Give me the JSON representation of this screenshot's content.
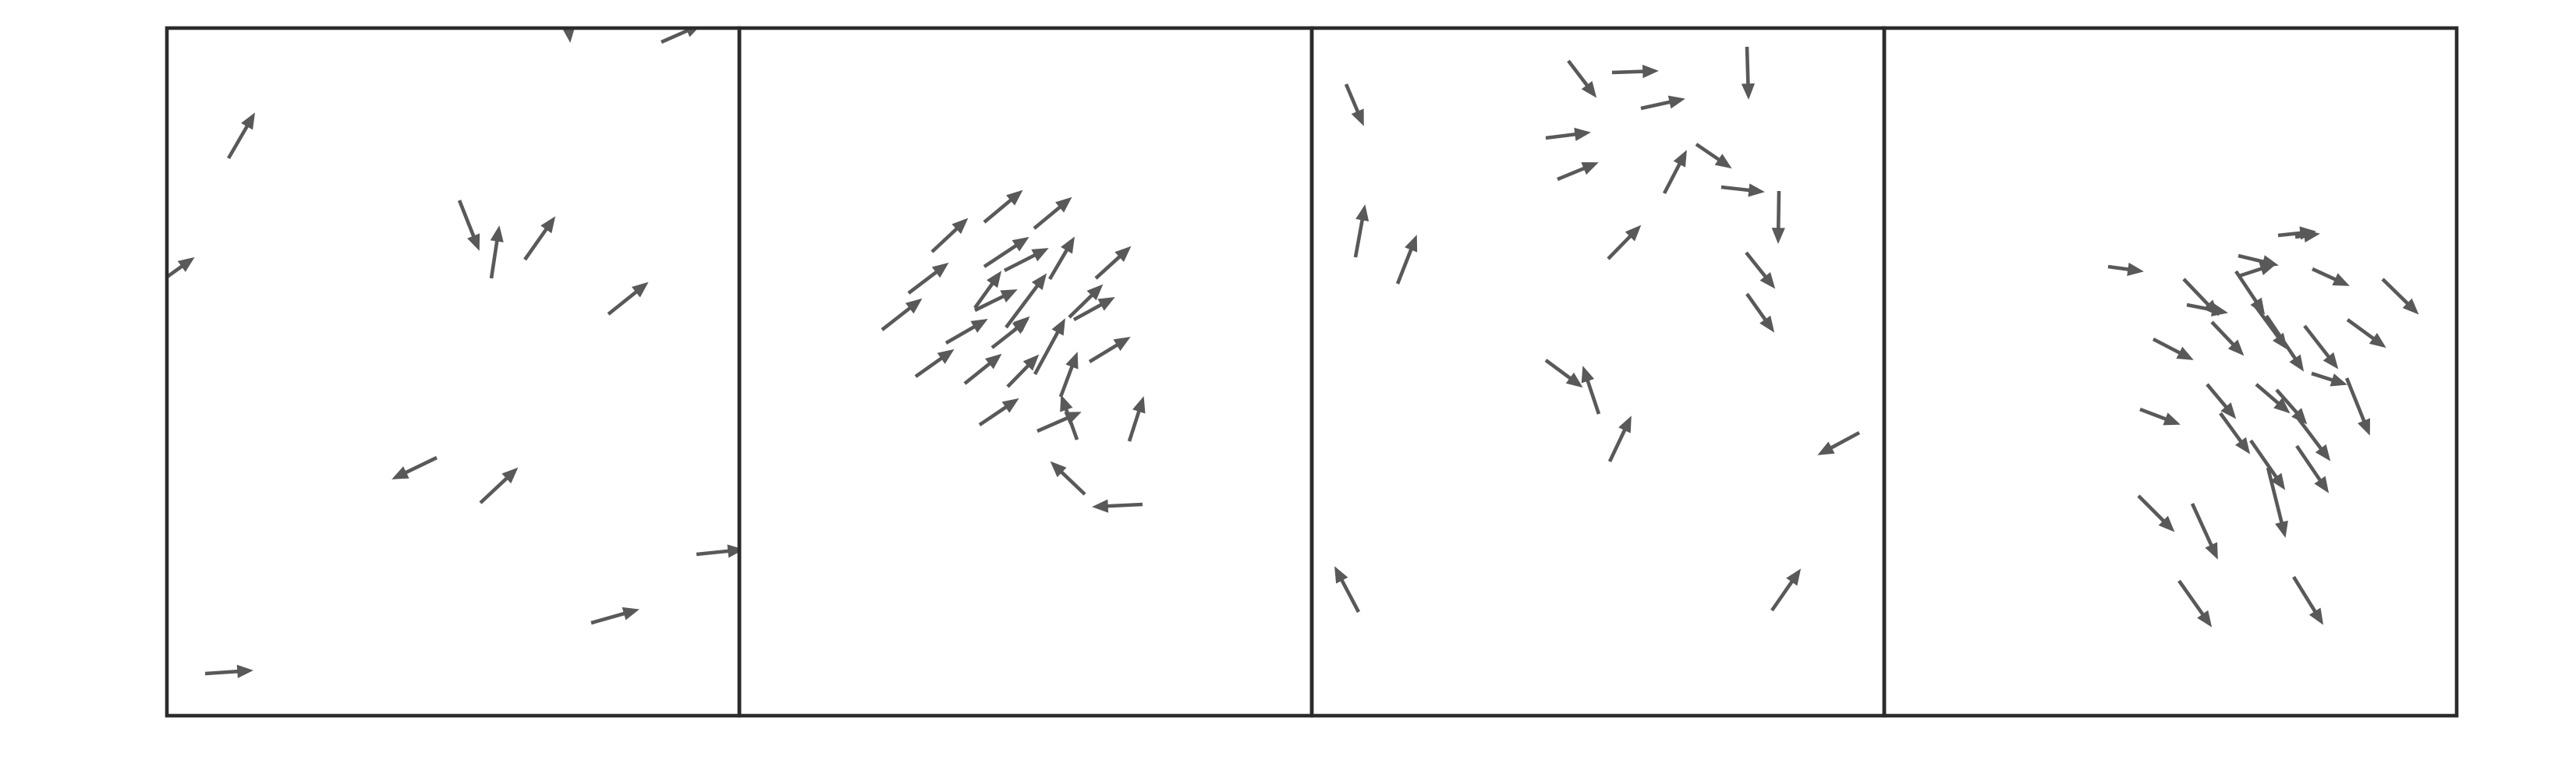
{
  "figure": {
    "panel_count": 4,
    "arrow_color": "#595959",
    "frame_color": "#2b2b2b",
    "background": "#ffffff"
  },
  "panels": [
    {
      "name": "panel-1",
      "description_visible": "",
      "arrows": [
        {
          "from": [
            293,
            203
          ],
          "to": [
            326,
            146
          ]
        },
        {
          "from": [
            729,
            35
          ],
          "to": [
            731,
            53
          ]
        },
        {
          "from": [
            848,
            54
          ],
          "to": [
            898,
            32
          ]
        },
        {
          "from": [
            213,
            356
          ],
          "to": [
            248,
            331
          ]
        },
        {
          "from": [
            589,
            257
          ],
          "to": [
            614,
            320
          ]
        },
        {
          "from": [
            630,
            357
          ],
          "to": [
            640,
            291
          ]
        },
        {
          "from": [
            673,
            333
          ],
          "to": [
            711,
            279
          ]
        },
        {
          "from": [
            780,
            403
          ],
          "to": [
            830,
            363
          ]
        },
        {
          "from": [
            560,
            587
          ],
          "to": [
            504,
            614
          ]
        },
        {
          "from": [
            616,
            645
          ],
          "to": [
            663,
            601
          ]
        },
        {
          "from": [
            893,
            711
          ],
          "to": [
            952,
            705
          ]
        },
        {
          "from": [
            758,
            799
          ],
          "to": [
            818,
            782
          ]
        },
        {
          "from": [
            263,
            864
          ],
          "to": [
            323,
            860
          ]
        }
      ]
    },
    {
      "name": "panel-2",
      "arrows": [
        {
          "from": [
            1195,
            323
          ],
          "to": [
            1240,
            281
          ]
        },
        {
          "from": [
            1262,
            285
          ],
          "to": [
            1310,
            245
          ]
        },
        {
          "from": [
            1326,
            293
          ],
          "to": [
            1373,
            254
          ]
        },
        {
          "from": [
            1165,
            376
          ],
          "to": [
            1215,
            338
          ]
        },
        {
          "from": [
            1262,
            342
          ],
          "to": [
            1318,
            305
          ]
        },
        {
          "from": [
            1288,
            347
          ],
          "to": [
            1343,
            319
          ]
        },
        {
          "from": [
            1346,
            358
          ],
          "to": [
            1377,
            305
          ]
        },
        {
          "from": [
            1405,
            357
          ],
          "to": [
            1449,
            317
          ]
        },
        {
          "from": [
            1131,
            423
          ],
          "to": [
            1181,
            384
          ]
        },
        {
          "from": [
            1250,
            395
          ],
          "to": [
            1283,
            349
          ]
        },
        {
          "from": [
            1250,
            398
          ],
          "to": [
            1303,
            372
          ]
        },
        {
          "from": [
            1290,
            420
          ],
          "to": [
            1341,
            352
          ]
        },
        {
          "from": [
            1371,
            407
          ],
          "to": [
            1413,
            366
          ]
        },
        {
          "from": [
            1377,
            410
          ],
          "to": [
            1428,
            382
          ]
        },
        {
          "from": [
            1213,
            440
          ],
          "to": [
            1265,
            410
          ]
        },
        {
          "from": [
            1272,
            446
          ],
          "to": [
            1318,
            410
          ]
        },
        {
          "from": [
            1300,
            424
          ],
          "to": [
            1319,
            407
          ]
        },
        {
          "from": [
            1397,
            464
          ],
          "to": [
            1448,
            433
          ]
        },
        {
          "from": [
            1174,
            483
          ],
          "to": [
            1222,
            449
          ]
        },
        {
          "from": [
            1237,
            492
          ],
          "to": [
            1283,
            455
          ]
        },
        {
          "from": [
            1292,
            496
          ],
          "to": [
            1331,
            456
          ]
        },
        {
          "from": [
            1327,
            480
          ],
          "to": [
            1365,
            410
          ]
        },
        {
          "from": [
            1360,
            509
          ],
          "to": [
            1381,
            453
          ]
        },
        {
          "from": [
            1256,
            545
          ],
          "to": [
            1305,
            512
          ]
        },
        {
          "from": [
            1330,
            553
          ],
          "to": [
            1385,
            529
          ]
        },
        {
          "from": [
            1381,
            564
          ],
          "to": [
            1361,
            508
          ]
        },
        {
          "from": [
            1448,
            566
          ],
          "to": [
            1466,
            510
          ]
        },
        {
          "from": [
            1391,
            634
          ],
          "to": [
            1348,
            593
          ]
        },
        {
          "from": [
            1465,
            647
          ],
          "to": [
            1402,
            650
          ]
        }
      ]
    },
    {
      "name": "panel-3",
      "arrows": [
        {
          "from": [
            1726,
            108
          ],
          "to": [
            1748,
            160
          ]
        },
        {
          "from": [
            2011,
            78
          ],
          "to": [
            2046,
            124
          ]
        },
        {
          "from": [
            2067,
            93
          ],
          "to": [
            2125,
            91
          ]
        },
        {
          "from": [
            2240,
            60
          ],
          "to": [
            2242,
            126
          ]
        },
        {
          "from": [
            2104,
            139
          ],
          "to": [
            2159,
            127
          ]
        },
        {
          "from": [
            1982,
            177
          ],
          "to": [
            2038,
            170
          ]
        },
        {
          "from": [
            1997,
            230
          ],
          "to": [
            2048,
            209
          ]
        },
        {
          "from": [
            2134,
            248
          ],
          "to": [
            2162,
            194
          ]
        },
        {
          "from": [
            2175,
            185
          ],
          "to": [
            2219,
            215
          ]
        },
        {
          "from": [
            2207,
            240
          ],
          "to": [
            2261,
            246
          ]
        },
        {
          "from": [
            2281,
            245
          ],
          "to": [
            2280,
            311
          ]
        },
        {
          "from": [
            1738,
            330
          ],
          "to": [
            1750,
            264
          ]
        },
        {
          "from": [
            1792,
            364
          ],
          "to": [
            1816,
            303
          ]
        },
        {
          "from": [
            2062,
            332
          ],
          "to": [
            2103,
            290
          ]
        },
        {
          "from": [
            2239,
            324
          ],
          "to": [
            2275,
            369
          ]
        },
        {
          "from": [
            2240,
            377
          ],
          "to": [
            2274,
            425
          ]
        },
        {
          "from": [
            1982,
            462
          ],
          "to": [
            2028,
            496
          ]
        },
        {
          "from": [
            2050,
            531
          ],
          "to": [
            2030,
            471
          ]
        },
        {
          "from": [
            2064,
            592
          ],
          "to": [
            2091,
            535
          ]
        },
        {
          "from": [
            2384,
            555
          ],
          "to": [
            2332,
            583
          ]
        },
        {
          "from": [
            1742,
            785
          ],
          "to": [
            1712,
            728
          ]
        },
        {
          "from": [
            2272,
            783
          ],
          "to": [
            2308,
            731
          ]
        }
      ]
    },
    {
      "name": "panel-4",
      "arrows": [
        {
          "from": [
            2703,
            342
          ],
          "to": [
            2747,
            348
          ]
        },
        {
          "from": [
            2871,
            354
          ],
          "to": [
            2917,
            339
          ]
        },
        {
          "from": [
            2943,
            304
          ],
          "to": [
            2973,
            300
          ]
        },
        {
          "from": [
            2921,
            302
          ],
          "to": [
            2968,
            297
          ]
        },
        {
          "from": [
            2870,
            328
          ],
          "to": [
            2920,
            340
          ]
        },
        {
          "from": [
            2965,
            345
          ],
          "to": [
            3011,
            366
          ]
        },
        {
          "from": [
            3055,
            358
          ],
          "to": [
            3100,
            402
          ]
        },
        {
          "from": [
            2800,
            358
          ],
          "to": [
            2844,
            404
          ]
        },
        {
          "from": [
            2804,
            391
          ],
          "to": [
            2855,
            401
          ]
        },
        {
          "from": [
            2867,
            348
          ],
          "to": [
            2903,
            402
          ]
        },
        {
          "from": [
            2890,
            390
          ],
          "to": [
            2932,
            447
          ]
        },
        {
          "from": [
            2906,
            405
          ],
          "to": [
            2953,
            475
          ]
        },
        {
          "from": [
            2836,
            413
          ],
          "to": [
            2876,
            455
          ]
        },
        {
          "from": [
            2761,
            435
          ],
          "to": [
            2811,
            461
          ]
        },
        {
          "from": [
            2955,
            418
          ],
          "to": [
            2997,
            472
          ]
        },
        {
          "from": [
            3010,
            410
          ],
          "to": [
            3058,
            445
          ]
        },
        {
          "from": [
            2964,
            479
          ],
          "to": [
            3008,
            493
          ]
        },
        {
          "from": [
            3009,
            485
          ],
          "to": [
            3038,
            557
          ]
        },
        {
          "from": [
            2830,
            493
          ],
          "to": [
            2866,
            536
          ]
        },
        {
          "from": [
            2893,
            493
          ],
          "to": [
            2935,
            529
          ]
        },
        {
          "from": [
            2919,
            500
          ],
          "to": [
            2957,
            543
          ]
        },
        {
          "from": [
            2944,
            533
          ],
          "to": [
            2987,
            590
          ]
        },
        {
          "from": [
            2744,
            525
          ],
          "to": [
            2794,
            544
          ]
        },
        {
          "from": [
            2847,
            530
          ],
          "to": [
            2884,
            581
          ]
        },
        {
          "from": [
            2886,
            565
          ],
          "to": [
            2929,
            627
          ]
        },
        {
          "from": [
            2908,
            600
          ],
          "to": [
            2930,
            688
          ]
        },
        {
          "from": [
            2945,
            572
          ],
          "to": [
            2985,
            631
          ]
        },
        {
          "from": [
            2742,
            636
          ],
          "to": [
            2787,
            681
          ]
        },
        {
          "from": [
            2811,
            646
          ],
          "to": [
            2843,
            716
          ]
        },
        {
          "from": [
            2794,
            745
          ],
          "to": [
            2835,
            803
          ]
        },
        {
          "from": [
            2941,
            740
          ],
          "to": [
            2978,
            800
          ]
        }
      ]
    }
  ]
}
